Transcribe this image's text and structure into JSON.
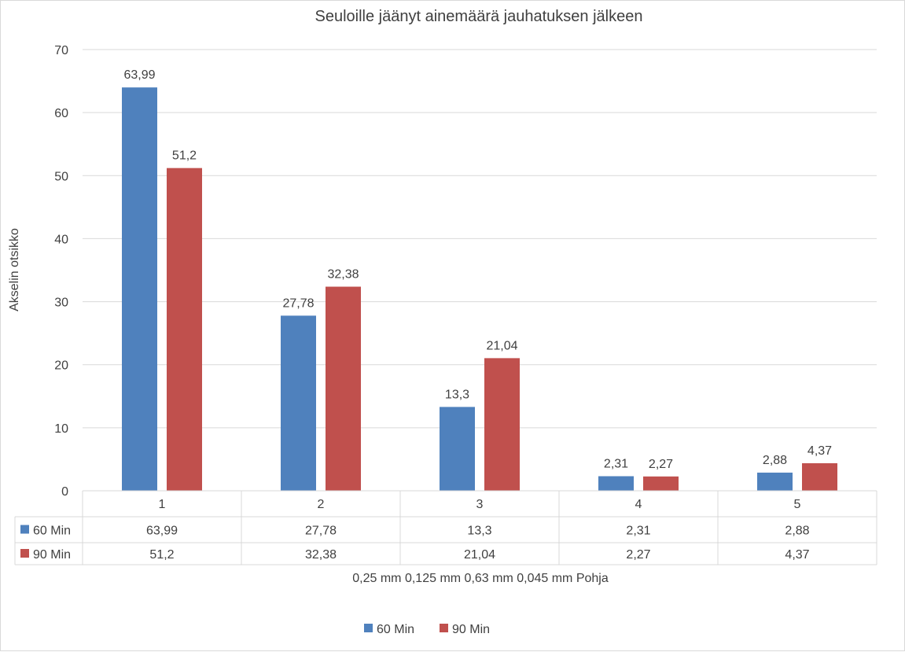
{
  "chart_data": {
    "type": "bar",
    "title": "Seuloille jäänyt ainemäärä jauhatuksen jälkeen",
    "ylabel": "Akselin otsikko",
    "xlabel": "0,25 mm 0,125 mm 0,63 mm 0,045 mm Pohja",
    "categories": [
      "1",
      "2",
      "3",
      "4",
      "5"
    ],
    "ylim": [
      0,
      70
    ],
    "yticks": [
      0,
      10,
      20,
      30,
      40,
      50,
      60,
      70
    ],
    "grid": true,
    "legend_position": "bottom",
    "series": [
      {
        "name": "60 Min",
        "color": "#4f81bd",
        "values": [
          63.99,
          27.78,
          13.3,
          2.31,
          2.88
        ],
        "labels": [
          "63,99",
          "27,78",
          "13,3",
          "2,31",
          "2,88"
        ]
      },
      {
        "name": "90 Min",
        "color": "#c0504d",
        "values": [
          51.2,
          32.38,
          21.04,
          2.27,
          4.37
        ],
        "labels": [
          "51,2",
          "32,38",
          "21,04",
          "2,27",
          "4,37"
        ]
      }
    ],
    "data_table": true
  }
}
